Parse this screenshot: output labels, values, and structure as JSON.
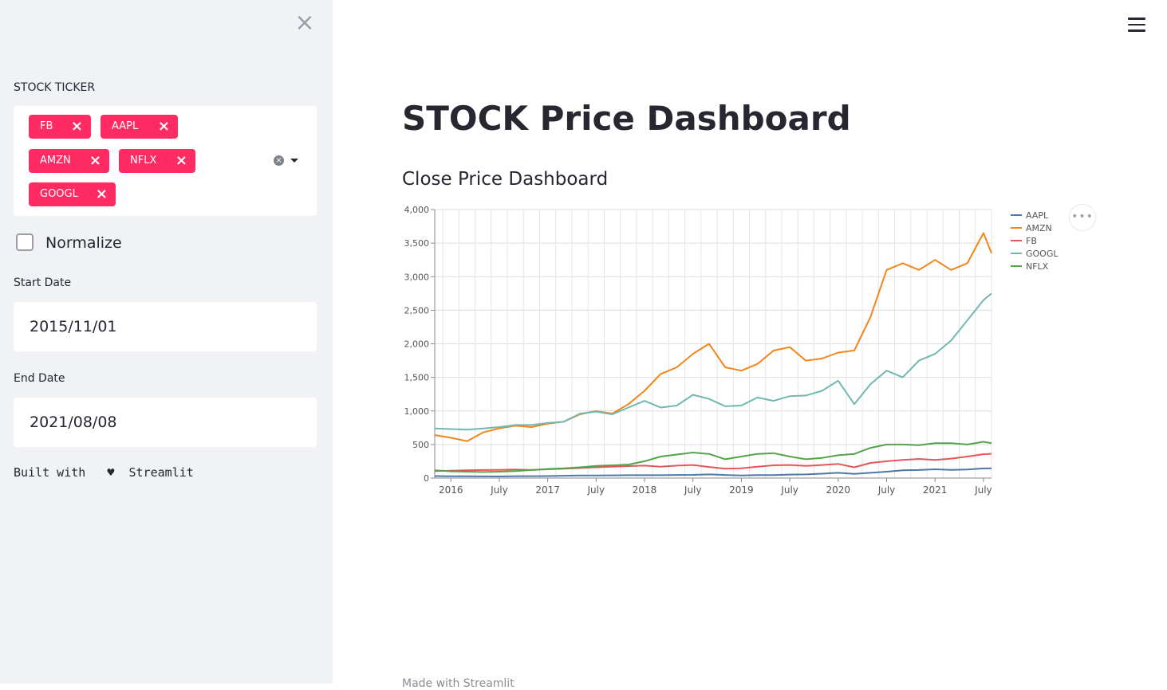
{
  "sidebar": {
    "close_icon": "×",
    "ticker_label": "STOCK TICKER",
    "tickers": [
      "FB",
      "AAPL",
      "AMZN",
      "NFLX",
      "GOOGL"
    ],
    "tag_remove": "×",
    "tag_color": "#ff2b62",
    "normalize_label": "Normalize",
    "normalize_checked": false,
    "start_date_label": "Start Date",
    "start_date_value": "2015/11/01",
    "end_date_label": "End Date",
    "end_date_value": "2021/08/08",
    "built_with": "Built with",
    "heart": "♥",
    "streamlit": "Streamlit"
  },
  "header": {
    "menu_icon": "hamburger-icon"
  },
  "main": {
    "title": "STOCK Price Dashboard",
    "subtitle": "Close Price Dashboard",
    "more_icon": "•••",
    "footer_text": "Made with Streamlit"
  },
  "chart_data": {
    "type": "line",
    "title": "",
    "xlabel": "",
    "ylabel": "",
    "ylim": [
      0,
      4000
    ],
    "yticks": [
      0,
      500,
      1000,
      1500,
      2000,
      2500,
      3000,
      3500,
      4000
    ],
    "xticks": [
      "2016",
      "July",
      "2017",
      "July",
      "2018",
      "July",
      "2019",
      "July",
      "2020",
      "July",
      "2021",
      "July"
    ],
    "grid": true,
    "legend": "top-right",
    "x": [
      "2015-11",
      "2016-01",
      "2016-03",
      "2016-05",
      "2016-07",
      "2016-09",
      "2016-11",
      "2017-01",
      "2017-03",
      "2017-05",
      "2017-07",
      "2017-09",
      "2017-11",
      "2018-01",
      "2018-03",
      "2018-05",
      "2018-07",
      "2018-09",
      "2018-11",
      "2019-01",
      "2019-03",
      "2019-05",
      "2019-07",
      "2019-09",
      "2019-11",
      "2020-01",
      "2020-03",
      "2020-05",
      "2020-07",
      "2020-09",
      "2020-11",
      "2021-01",
      "2021-03",
      "2021-05",
      "2021-07",
      "2021-08"
    ],
    "series": [
      {
        "name": "AAPL",
        "color": "#4c78a8",
        "values": [
          30,
          26,
          26,
          25,
          24,
          28,
          28,
          30,
          35,
          38,
          38,
          40,
          43,
          43,
          43,
          46,
          48,
          55,
          46,
          38,
          45,
          45,
          52,
          55,
          65,
          78,
          62,
          78,
          95,
          115,
          120,
          131,
          122,
          127,
          144,
          146
        ]
      },
      {
        "name": "AMZN",
        "color": "#f58518",
        "values": [
          640,
          600,
          550,
          680,
          740,
          780,
          760,
          810,
          840,
          950,
          1000,
          960,
          1100,
          1300,
          1550,
          1650,
          1850,
          2000,
          1650,
          1600,
          1700,
          1900,
          1950,
          1750,
          1780,
          1870,
          1900,
          2400,
          3100,
          3200,
          3100,
          3250,
          3100,
          3200,
          3650,
          3350
        ]
      },
      {
        "name": "FB",
        "color": "#e45756",
        "values": [
          105,
          110,
          115,
          120,
          122,
          128,
          120,
          130,
          140,
          150,
          160,
          170,
          178,
          185,
          170,
          185,
          195,
          165,
          140,
          145,
          170,
          190,
          195,
          180,
          195,
          210,
          160,
          225,
          250,
          270,
          285,
          270,
          290,
          320,
          355,
          362
        ]
      },
      {
        "name": "GOOGL",
        "color": "#72b7b2",
        "values": [
          740,
          730,
          720,
          740,
          760,
          790,
          790,
          820,
          840,
          960,
          990,
          950,
          1050,
          1150,
          1050,
          1080,
          1240,
          1180,
          1070,
          1080,
          1200,
          1150,
          1220,
          1230,
          1300,
          1450,
          1100,
          1400,
          1600,
          1500,
          1750,
          1850,
          2050,
          2350,
          2650,
          2750
        ]
      },
      {
        "name": "NFLX",
        "color": "#54a24b",
        "values": [
          115,
          100,
          95,
          90,
          95,
          105,
          120,
          135,
          145,
          160,
          180,
          190,
          200,
          250,
          320,
          350,
          380,
          360,
          280,
          320,
          360,
          370,
          320,
          280,
          300,
          340,
          360,
          450,
          500,
          500,
          490,
          520,
          520,
          500,
          540,
          520
        ]
      }
    ]
  }
}
